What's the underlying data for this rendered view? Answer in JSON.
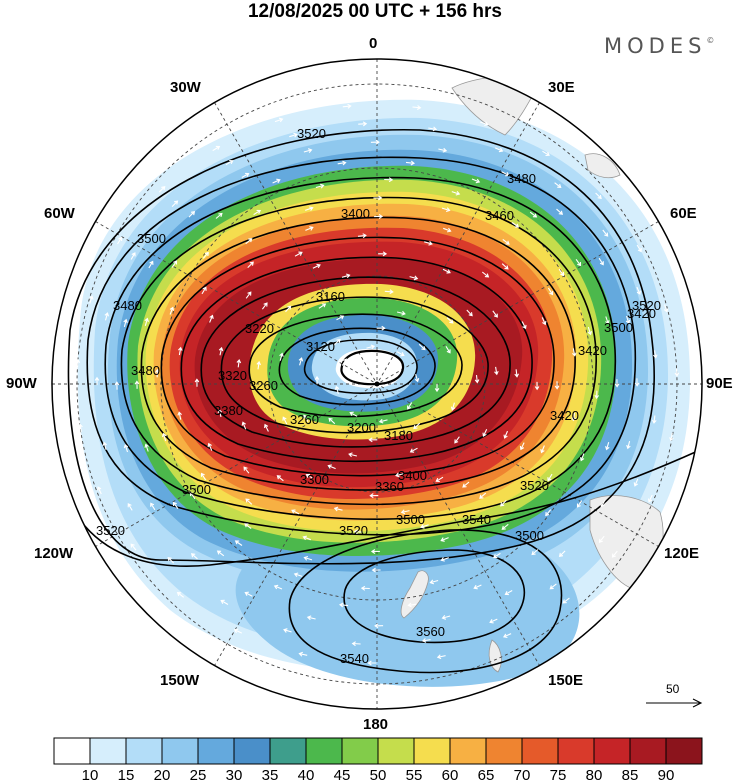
{
  "title": "12/08/2025  00 UTC  + 156 hrs",
  "brand": "MODES",
  "brand_mark": "©",
  "longitude_labels": {
    "lon_0": "0",
    "lon_30e": "30E",
    "lon_60e": "60E",
    "lon_90e": "90E",
    "lon_120e": "120E",
    "lon_150e": "150E",
    "lon_180": "180",
    "lon_150w": "150W",
    "lon_120w": "120W",
    "lon_90w": "90W",
    "lon_60w": "60W",
    "lon_30w": "30W"
  },
  "contour_labels": [
    "3520",
    "3480",
    "3460",
    "3400",
    "3500",
    "3480",
    "3420",
    "3160",
    "3120",
    "3220",
    "3260",
    "3320",
    "3420",
    "3380",
    "3500",
    "3520",
    "3520",
    "3500",
    "3500",
    "3480",
    "3420",
    "3520",
    "3180",
    "3200",
    "3260",
    "3300",
    "3360",
    "3400",
    "3500",
    "3540",
    "3560",
    "3540",
    "3520"
  ],
  "reference_vector": {
    "label": "50"
  },
  "colorbar": {
    "ticks": [
      "10",
      "15",
      "20",
      "25",
      "30",
      "35",
      "40",
      "45",
      "50",
      "55",
      "60",
      "65",
      "70",
      "75",
      "80",
      "85",
      "90"
    ],
    "colors": [
      "#ffffff",
      "#d6eefc",
      "#b3ddf8",
      "#8fc8ee",
      "#64a9dd",
      "#4a8fc9",
      "#3e9e8c",
      "#4cb84c",
      "#82cc4a",
      "#c5dd4c",
      "#f5dd4e",
      "#f7b043",
      "#ef8430",
      "#e55a2a",
      "#d93a2b",
      "#c52427",
      "#a81a22",
      "#8b141c"
    ]
  },
  "colors": {
    "land": "#eeeeee",
    "vector": "#ffffff",
    "contour": "#000000"
  }
}
